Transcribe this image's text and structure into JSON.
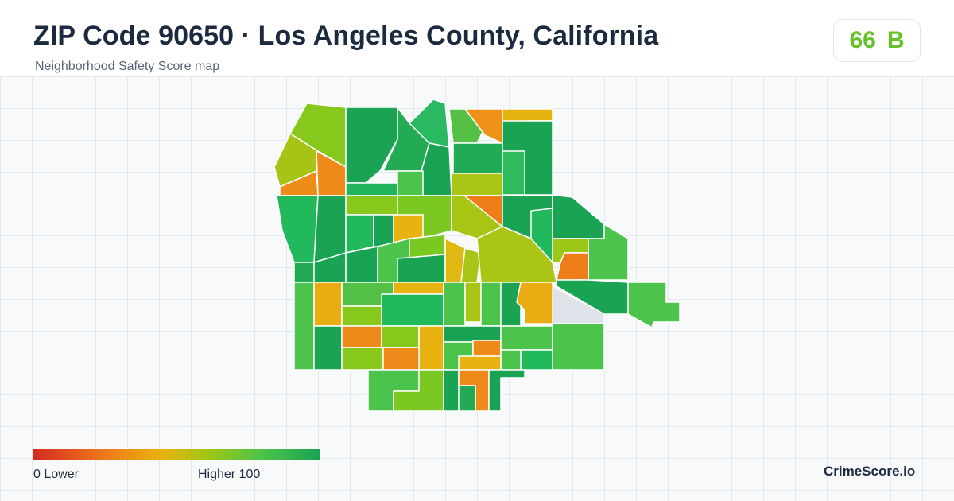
{
  "header": {
    "title": "ZIP Code 90650 · Los Angeles County, California",
    "subtitle": "Neighborhood Safety Score map"
  },
  "score": {
    "value": "66",
    "grade": "B",
    "color": "#66c12b"
  },
  "legend": {
    "min_label": "0  Lower",
    "max_label": "Higher  100"
  },
  "brand": "CrimeScore.io",
  "colors": {
    "low": "#d42b1f",
    "orange": "#ee7a1b",
    "amber": "#e9b30f",
    "yellow_green": "#9cc716",
    "green": "#4cc34a",
    "dark_green": "#1aa352",
    "no_data": "#dde3e8"
  }
}
